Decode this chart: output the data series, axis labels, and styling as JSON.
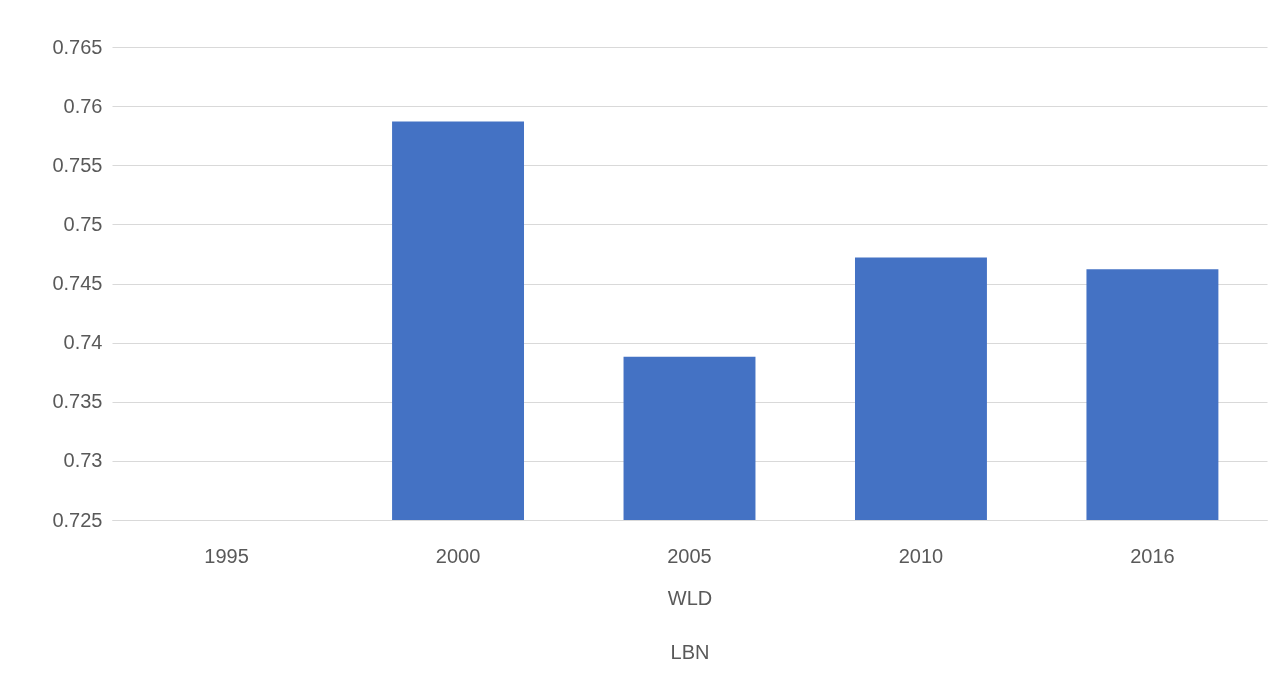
{
  "chart_data": {
    "type": "bar",
    "categories": [
      "1995",
      "2000",
      "2005",
      "2010",
      "2016"
    ],
    "values": [
      null,
      0.7587,
      0.7388,
      0.7472,
      0.7462
    ],
    "color": "#4472c4",
    "ylim": [
      0.725,
      0.765
    ],
    "yticks": [
      0.725,
      0.73,
      0.735,
      0.74,
      0.745,
      0.75,
      0.755,
      0.76,
      0.765
    ],
    "grid": "y",
    "xlabel": "WLD",
    "annotations": [
      "LBN"
    ]
  }
}
